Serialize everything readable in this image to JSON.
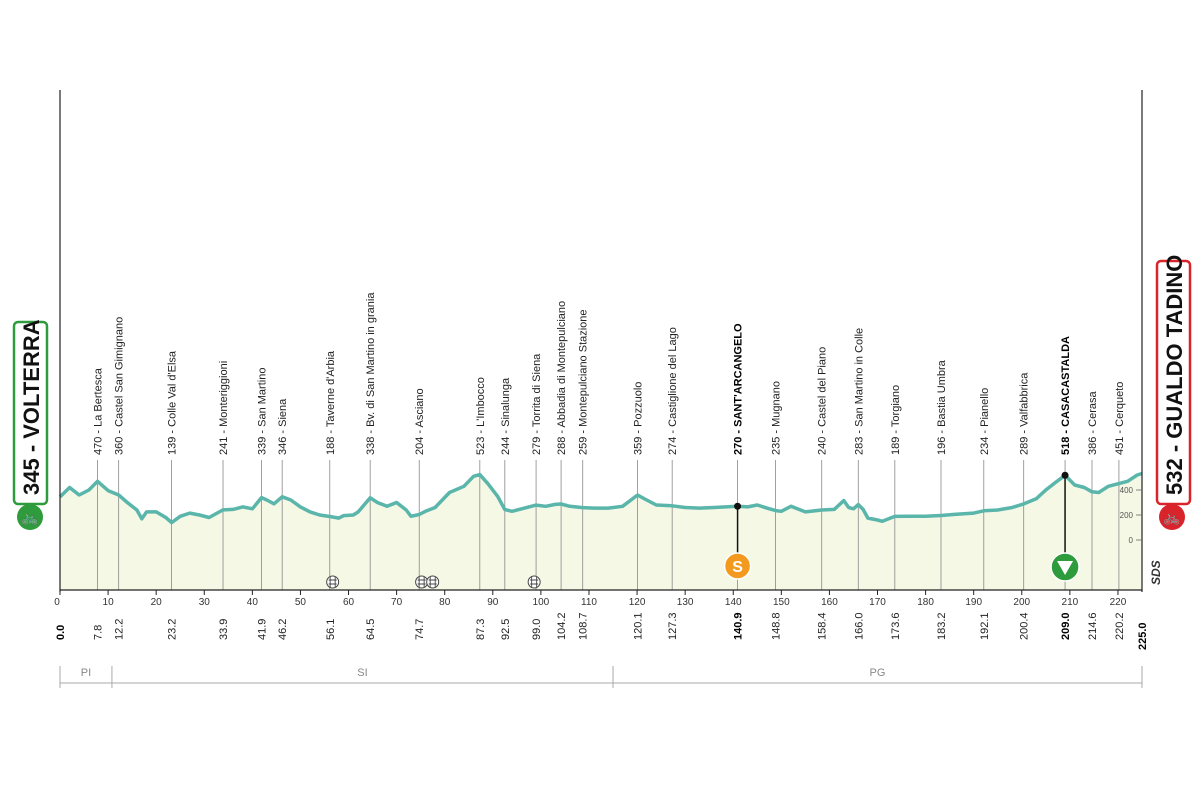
{
  "chart_data": {
    "type": "area",
    "start": {
      "name": "345 - VOLTERRA",
      "km": "0.0",
      "color": "#2e9b3c"
    },
    "finish": {
      "name": "532 - GUALDO TADINO",
      "km": "225.0",
      "color": "#d9242b"
    },
    "xlim": [
      0,
      225
    ],
    "x_ticks": [
      0,
      10,
      20,
      30,
      40,
      50,
      60,
      70,
      80,
      90,
      100,
      110,
      120,
      130,
      140,
      150,
      160,
      170,
      180,
      190,
      200,
      210,
      220
    ],
    "y_ticks": [
      0,
      200,
      400
    ],
    "brand": "SDS",
    "profile": [
      [
        0,
        345
      ],
      [
        2,
        420
      ],
      [
        4,
        360
      ],
      [
        6,
        400
      ],
      [
        7.8,
        470
      ],
      [
        10,
        395
      ],
      [
        12.2,
        360
      ],
      [
        14,
        300
      ],
      [
        16,
        240
      ],
      [
        17,
        170
      ],
      [
        18,
        225
      ],
      [
        20,
        225
      ],
      [
        22,
        180
      ],
      [
        23.2,
        139
      ],
      [
        25,
        190
      ],
      [
        27,
        215
      ],
      [
        29,
        200
      ],
      [
        31,
        180
      ],
      [
        33.9,
        241
      ],
      [
        36,
        245
      ],
      [
        38,
        265
      ],
      [
        40,
        250
      ],
      [
        41.9,
        339
      ],
      [
        43,
        320
      ],
      [
        44.5,
        290
      ],
      [
        46.2,
        346
      ],
      [
        48,
        320
      ],
      [
        50,
        265
      ],
      [
        52,
        225
      ],
      [
        54,
        200
      ],
      [
        56.1,
        188
      ],
      [
        58,
        175
      ],
      [
        59,
        195
      ],
      [
        61,
        200
      ],
      [
        62,
        225
      ],
      [
        64.5,
        338
      ],
      [
        66,
        300
      ],
      [
        68,
        270
      ],
      [
        69,
        285
      ],
      [
        70,
        300
      ],
      [
        72,
        240
      ],
      [
        73,
        190
      ],
      [
        74.7,
        204
      ],
      [
        76,
        230
      ],
      [
        78,
        260
      ],
      [
        79,
        300
      ],
      [
        81,
        380
      ],
      [
        84,
        430
      ],
      [
        86,
        510
      ],
      [
        87.3,
        523
      ],
      [
        89,
        450
      ],
      [
        91,
        350
      ],
      [
        92.5,
        244
      ],
      [
        94,
        230
      ],
      [
        96,
        250
      ],
      [
        99,
        279
      ],
      [
        101,
        270
      ],
      [
        103,
        285
      ],
      [
        104.2,
        288
      ],
      [
        106,
        270
      ],
      [
        108.7,
        259
      ],
      [
        111,
        255
      ],
      [
        114,
        255
      ],
      [
        117,
        270
      ],
      [
        120.1,
        359
      ],
      [
        122,
        320
      ],
      [
        124,
        280
      ],
      [
        127.3,
        274
      ],
      [
        130,
        260
      ],
      [
        133,
        255
      ],
      [
        136,
        260
      ],
      [
        140.9,
        270
      ],
      [
        143,
        265
      ],
      [
        145,
        280
      ],
      [
        147,
        255
      ],
      [
        148.8,
        235
      ],
      [
        150,
        230
      ],
      [
        152,
        270
      ],
      [
        155,
        225
      ],
      [
        158.4,
        240
      ],
      [
        161,
        245
      ],
      [
        163,
        315
      ],
      [
        164,
        260
      ],
      [
        165,
        250
      ],
      [
        166,
        283
      ],
      [
        167,
        245
      ],
      [
        168,
        175
      ],
      [
        170,
        160
      ],
      [
        171,
        150
      ],
      [
        173.6,
        189
      ],
      [
        176,
        190
      ],
      [
        180,
        190
      ],
      [
        183.2,
        196
      ],
      [
        186,
        205
      ],
      [
        190,
        215
      ],
      [
        192.1,
        234
      ],
      [
        195,
        240
      ],
      [
        198,
        260
      ],
      [
        200.4,
        289
      ],
      [
        203,
        330
      ],
      [
        205,
        400
      ],
      [
        207,
        460
      ],
      [
        209,
        518
      ],
      [
        211,
        440
      ],
      [
        213,
        420
      ],
      [
        214.6,
        386
      ],
      [
        216,
        380
      ],
      [
        218,
        430
      ],
      [
        220.2,
        451
      ],
      [
        222,
        470
      ],
      [
        224,
        520
      ],
      [
        225,
        532
      ]
    ],
    "waypoints": [
      {
        "km": 7.8,
        "label": "470 - La Bertesca",
        "dist": "7.8"
      },
      {
        "km": 12.2,
        "label": "360 - Castel San Gimignano",
        "dist": "12.2"
      },
      {
        "km": 23.2,
        "label": "139 - Colle Val d'Elsa",
        "dist": "23.2"
      },
      {
        "km": 33.9,
        "label": "241 - Monteriggioni",
        "dist": "33.9"
      },
      {
        "km": 41.9,
        "label": "339 - San Martino",
        "dist": "41.9"
      },
      {
        "km": 46.2,
        "label": "346 - Siena",
        "dist": "46.2"
      },
      {
        "km": 56.1,
        "label": "188 - Taverne d'Arbia",
        "dist": "56.1"
      },
      {
        "km": 64.5,
        "label": "338 - Bv. di San Martino in grania",
        "dist": "64.5"
      },
      {
        "km": 74.7,
        "label": "204 - Asciano",
        "dist": "74.7"
      },
      {
        "km": 87.3,
        "label": "523 - L'Imbocco",
        "dist": "87.3"
      },
      {
        "km": 92.5,
        "label": "244 - Sinalunga",
        "dist": "92.5"
      },
      {
        "km": 99.0,
        "label": "279 - Torrita di Siena",
        "dist": "99.0"
      },
      {
        "km": 104.2,
        "label": "288 - Abbadia di Montepulciano",
        "dist": "104.2"
      },
      {
        "km": 108.7,
        "label": "259 - Montepulciano Stazione",
        "dist": "108.7"
      },
      {
        "km": 120.1,
        "label": "359 - Pozzuolo",
        "dist": "120.1"
      },
      {
        "km": 127.3,
        "label": "274 - Castiglione del Lago",
        "dist": "127.3"
      },
      {
        "km": 140.9,
        "label": "270 - SANT'ARCANGELO",
        "dist": "140.9",
        "bold": true,
        "marker": "sprint"
      },
      {
        "km": 148.8,
        "label": "235 - Mugnano",
        "dist": "148.8"
      },
      {
        "km": 158.4,
        "label": "240 - Castel del Piano",
        "dist": "158.4"
      },
      {
        "km": 166.0,
        "label": "283 - San Martino in Colle",
        "dist": "166.0"
      },
      {
        "km": 173.6,
        "label": "189 - Torgiano",
        "dist": "173.6"
      },
      {
        "km": 183.2,
        "label": "196 - Bastia Umbra",
        "dist": "183.2"
      },
      {
        "km": 192.1,
        "label": "234 - Pianello",
        "dist": "192.1"
      },
      {
        "km": 200.4,
        "label": "289 - Valfabbrica",
        "dist": "200.4"
      },
      {
        "km": 209.0,
        "label": "518 - CASACASTALDA",
        "dist": "209.0",
        "bold": true,
        "marker": "kom"
      },
      {
        "km": 214.6,
        "label": "386 - Cerasa",
        "dist": "214.6"
      },
      {
        "km": 220.2,
        "label": "451 - Cerqueto",
        "dist": "220.2"
      }
    ],
    "rail_crossings_km": [
      56.7,
      75.2,
      77.5,
      98.6
    ],
    "regions": [
      {
        "label": "PI",
        "from": 0,
        "to": 10.8
      },
      {
        "label": "SI",
        "from": 10.8,
        "to": 115
      },
      {
        "label": "PG",
        "from": 115,
        "to": 225
      }
    ],
    "colors": {
      "line": "#5ab5aa",
      "fill": "#f6f8e6",
      "sprint": "#f39a1e",
      "kom": "#2e9b3c"
    }
  }
}
